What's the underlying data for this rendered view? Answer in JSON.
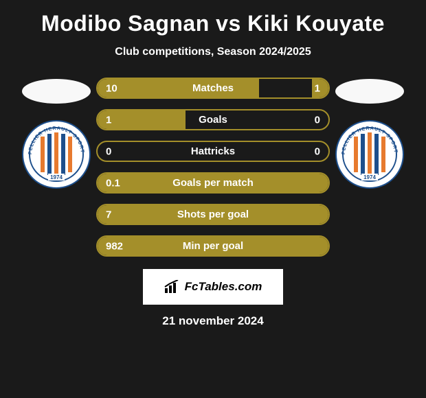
{
  "title": "Modibo Sagnan vs Kiki Kouyate",
  "subtitle": "Club competitions, Season 2024/2025",
  "date_line": "21 november 2024",
  "brand_text": "FcTables.com",
  "colors": {
    "accent": "#a48f2a",
    "background": "#1a1a1a",
    "text": "#ffffff",
    "badge_stripe_blue": "#1d4f8c",
    "badge_stripe_orange": "#e77a2e",
    "badge_year_text": "1974"
  },
  "bars": [
    {
      "label": "Matches",
      "left": "10",
      "right": "1",
      "left_pct": 70,
      "right_pct": 7
    },
    {
      "label": "Goals",
      "left": "1",
      "right": "0",
      "left_pct": 38,
      "right_pct": 0
    },
    {
      "label": "Hattricks",
      "left": "0",
      "right": "0",
      "left_pct": 0,
      "right_pct": 0
    },
    {
      "label": "Goals per match",
      "left": "0.1",
      "right": "",
      "left_pct": 100,
      "right_pct": 0
    },
    {
      "label": "Shots per goal",
      "left": "7",
      "right": "",
      "left_pct": 100,
      "right_pct": 0
    },
    {
      "label": "Min per goal",
      "left": "982",
      "right": "",
      "left_pct": 100,
      "right_pct": 0
    }
  ]
}
